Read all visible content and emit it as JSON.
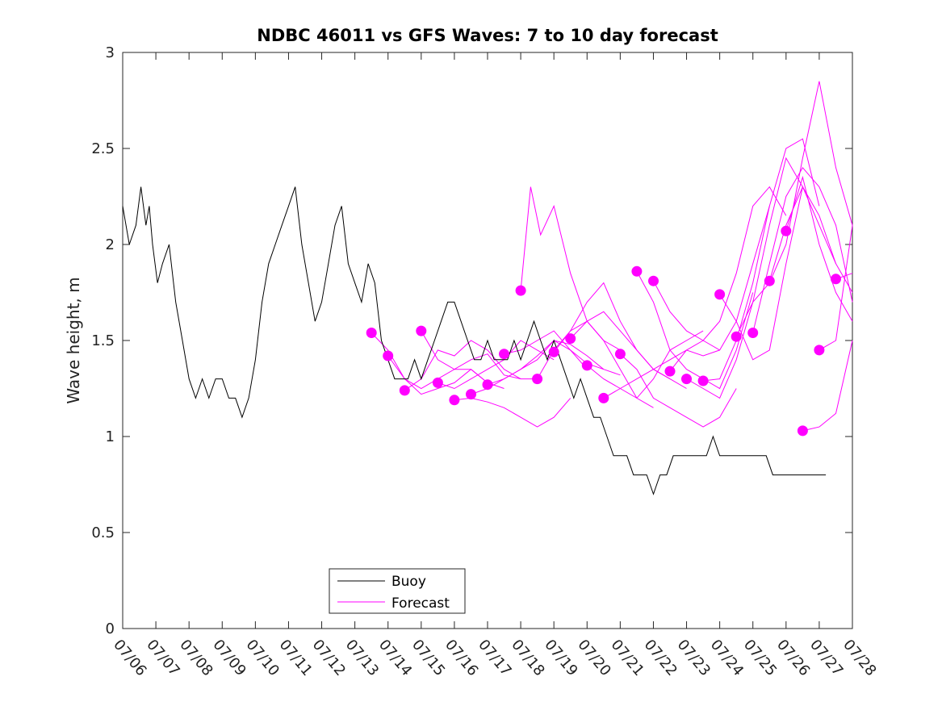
{
  "chart_data": {
    "type": "line",
    "title": "NDBC 46011 vs GFS Waves: 7 to 10 day forecast",
    "xlabel": "",
    "ylabel": "Wave height, m",
    "ylim": [
      0,
      3
    ],
    "yticks": [
      "0",
      "0.5",
      "1",
      "1.5",
      "2",
      "2.5",
      "3"
    ],
    "xlim": [
      "07/06",
      "07/28"
    ],
    "xticks": [
      "07/06",
      "07/07",
      "07/08",
      "07/09",
      "07/10",
      "07/11",
      "07/12",
      "07/13",
      "07/14",
      "07/15",
      "07/16",
      "07/17",
      "07/18",
      "07/19",
      "07/20",
      "07/21",
      "07/22",
      "07/23",
      "07/24",
      "07/25",
      "07/26",
      "07/27",
      "07/28"
    ],
    "legend": {
      "position": "bottom-left",
      "entries": [
        "Buoy",
        "Forecast"
      ]
    },
    "colors": {
      "buoy": "#000000",
      "forecast": "#ff00ff",
      "axes": "#262626"
    },
    "series": [
      {
        "name": "Buoy",
        "style": "line",
        "x": [
          0.0,
          0.2,
          0.4,
          0.55,
          0.7,
          0.8,
          0.9,
          1.05,
          1.2,
          1.4,
          1.6,
          1.8,
          2.0,
          2.2,
          2.4,
          2.6,
          2.8,
          3.0,
          3.2,
          3.4,
          3.6,
          3.8,
          4.0,
          4.2,
          4.4,
          4.6,
          4.8,
          5.0,
          5.2,
          5.4,
          5.6,
          5.8,
          6.0,
          6.2,
          6.4,
          6.6,
          6.8,
          7.0,
          7.2,
          7.4,
          7.6,
          7.8,
          8.0,
          8.2,
          8.4,
          8.6,
          8.8,
          9.0,
          9.2,
          9.4,
          9.6,
          9.8,
          10.0,
          10.2,
          10.4,
          10.6,
          10.8,
          11.0,
          11.2,
          11.4,
          11.6,
          11.8,
          12.0,
          12.2,
          12.4,
          12.6,
          12.8,
          13.0,
          13.2,
          13.4,
          13.6,
          13.8,
          14.0,
          14.2,
          14.4,
          14.6,
          14.8,
          15.0,
          15.2,
          15.4,
          15.6,
          15.8,
          16.0,
          16.2,
          16.4,
          16.6,
          16.8,
          17.0,
          17.2,
          17.4,
          17.6,
          17.8,
          18.0,
          18.2,
          18.4,
          18.6,
          18.8,
          19.0,
          19.2,
          19.4,
          19.6,
          19.8,
          20.0,
          20.2,
          20.4,
          20.6,
          20.8,
          21.0,
          21.2
        ],
        "y": [
          2.2,
          2.0,
          2.1,
          2.3,
          2.1,
          2.2,
          2.0,
          1.8,
          1.9,
          2.0,
          1.7,
          1.5,
          1.3,
          1.2,
          1.3,
          1.2,
          1.3,
          1.3,
          1.2,
          1.2,
          1.1,
          1.2,
          1.4,
          1.7,
          1.9,
          2.0,
          2.1,
          2.2,
          2.3,
          2.0,
          1.8,
          1.6,
          1.7,
          1.9,
          2.1,
          2.2,
          1.9,
          1.8,
          1.7,
          1.9,
          1.8,
          1.5,
          1.4,
          1.3,
          1.3,
          1.3,
          1.4,
          1.3,
          1.4,
          1.5,
          1.6,
          1.7,
          1.7,
          1.6,
          1.5,
          1.4,
          1.4,
          1.5,
          1.4,
          1.4,
          1.4,
          1.5,
          1.4,
          1.5,
          1.6,
          1.5,
          1.4,
          1.5,
          1.4,
          1.3,
          1.2,
          1.3,
          1.2,
          1.1,
          1.1,
          1.0,
          0.9,
          0.9,
          0.9,
          0.8,
          0.8,
          0.8,
          0.7,
          0.8,
          0.8,
          0.9,
          0.9,
          0.9,
          0.9,
          0.9,
          0.9,
          1.0,
          0.9,
          0.9,
          0.9,
          0.9,
          0.9,
          0.9,
          0.9,
          0.9,
          0.8,
          0.8,
          0.8,
          0.8,
          0.8,
          0.8,
          0.8,
          0.8,
          0.8
        ]
      },
      {
        "name": "Forecast",
        "style": "lines",
        "runs": [
          {
            "x": [
              7.5,
              8.0,
              8.5,
              9.0,
              9.5,
              10.0,
              10.5,
              11.0
            ],
            "y": [
              1.54,
              1.45,
              1.3,
              1.25,
              1.3,
              1.35,
              1.35,
              1.28
            ]
          },
          {
            "x": [
              8.0,
              8.5,
              9.0,
              9.5,
              10.0,
              10.5,
              11.0,
              11.5
            ],
            "y": [
              1.42,
              1.3,
              1.22,
              1.25,
              1.28,
              1.35,
              1.28,
              1.25
            ]
          },
          {
            "x": [
              8.5,
              9.0,
              9.5,
              10.0,
              10.5,
              11.0,
              11.5,
              12.0
            ],
            "y": [
              1.24,
              1.3,
              1.45,
              1.42,
              1.5,
              1.45,
              1.35,
              1.3
            ]
          },
          {
            "x": [
              9.0,
              9.5,
              10.0,
              10.5,
              11.0,
              11.5,
              12.0,
              12.5
            ],
            "y": [
              1.55,
              1.4,
              1.35,
              1.4,
              1.43,
              1.32,
              1.3,
              1.3
            ]
          },
          {
            "x": [
              9.5,
              10.0,
              10.5,
              11.0,
              11.5,
              12.0,
              12.5,
              13.0
            ],
            "y": [
              1.28,
              1.25,
              1.3,
              1.35,
              1.4,
              1.5,
              1.45,
              1.4
            ]
          },
          {
            "x": [
              10.0,
              10.5,
              11.0,
              11.5,
              12.0,
              12.5,
              13.0,
              13.5
            ],
            "y": [
              1.19,
              1.2,
              1.18,
              1.15,
              1.1,
              1.05,
              1.1,
              1.2
            ]
          },
          {
            "x": [
              10.5,
              11.0,
              11.5,
              12.0,
              12.5,
              13.0,
              13.5,
              14.0
            ],
            "y": [
              1.22,
              1.25,
              1.3,
              1.35,
              1.4,
              1.5,
              1.45,
              1.35
            ]
          },
          {
            "x": [
              11.0,
              11.5,
              12.0,
              12.5,
              13.0,
              13.5,
              14.0,
              14.5
            ],
            "y": [
              1.27,
              1.3,
              1.35,
              1.42,
              1.5,
              1.48,
              1.42,
              1.35
            ]
          },
          {
            "x": [
              11.5,
              12.0,
              12.5,
              13.0,
              13.5,
              14.0,
              14.5,
              15.0
            ],
            "y": [
              1.43,
              1.45,
              1.5,
              1.55,
              1.45,
              1.38,
              1.35,
              1.32
            ]
          },
          {
            "x": [
              12.0,
              12.3,
              12.6,
              13.0,
              13.5,
              14.0,
              14.5,
              15.0
            ],
            "y": [
              1.76,
              2.3,
              2.05,
              2.2,
              1.85,
              1.6,
              1.5,
              1.45
            ]
          },
          {
            "x": [
              12.5,
              13.0,
              13.5,
              14.0,
              14.5,
              15.0,
              15.5,
              16.0
            ],
            "y": [
              1.3,
              1.45,
              1.55,
              1.6,
              1.5,
              1.35,
              1.2,
              1.15
            ]
          },
          {
            "x": [
              13.0,
              13.5,
              14.0,
              14.5,
              15.0,
              15.5,
              16.0,
              16.5
            ],
            "y": [
              1.44,
              1.55,
              1.7,
              1.8,
              1.6,
              1.45,
              1.35,
              1.3
            ]
          },
          {
            "x": [
              13.5,
              14.0,
              14.5,
              15.0,
              15.5,
              16.0,
              16.5,
              17.0
            ],
            "y": [
              1.51,
              1.6,
              1.65,
              1.55,
              1.45,
              1.35,
              1.3,
              1.25
            ]
          },
          {
            "x": [
              14.0,
              14.5,
              15.0,
              15.5,
              16.0,
              16.5,
              17.0,
              17.5
            ],
            "y": [
              1.37,
              1.3,
              1.25,
              1.2,
              1.3,
              1.45,
              1.5,
              1.55
            ]
          },
          {
            "x": [
              14.5,
              15.0,
              15.5,
              16.0,
              16.5,
              17.0,
              17.5,
              18.0
            ],
            "y": [
              1.2,
              1.25,
              1.3,
              1.35,
              1.4,
              1.45,
              1.42,
              1.45
            ]
          },
          {
            "x": [
              15.0,
              15.5,
              16.0,
              16.5,
              17.0,
              17.5,
              18.0,
              18.5
            ],
            "y": [
              1.43,
              1.35,
              1.2,
              1.15,
              1.1,
              1.05,
              1.1,
              1.25
            ]
          },
          {
            "x": [
              15.5,
              16.0,
              16.5,
              17.0,
              17.5,
              18.0,
              18.5,
              19.0
            ],
            "y": [
              1.86,
              1.7,
              1.45,
              1.35,
              1.3,
              1.25,
              1.45,
              1.75
            ]
          },
          {
            "x": [
              16.0,
              16.5,
              17.0,
              17.5,
              18.0,
              18.5,
              19.0,
              19.5
            ],
            "y": [
              1.81,
              1.65,
              1.55,
              1.5,
              1.45,
              1.6,
              1.9,
              2.2
            ]
          },
          {
            "x": [
              16.5,
              17.0,
              17.5,
              18.0,
              18.5,
              19.0,
              19.5,
              20.0
            ],
            "y": [
              1.34,
              1.45,
              1.5,
              1.6,
              1.85,
              2.2,
              2.3,
              2.15
            ]
          },
          {
            "x": [
              17.0,
              17.5,
              18.0,
              18.5,
              19.0,
              19.5,
              20.0,
              20.5
            ],
            "y": [
              1.3,
              1.25,
              1.2,
              1.4,
              1.7,
              2.1,
              2.45,
              2.3
            ]
          },
          {
            "x": [
              17.5,
              18.0,
              18.5,
              19.0,
              19.5,
              20.0,
              20.5,
              21.0
            ],
            "y": [
              1.29,
              1.3,
              1.5,
              1.8,
              2.2,
              2.5,
              2.55,
              2.2
            ]
          },
          {
            "x": [
              18.0,
              18.5,
              19.0,
              19.5,
              20.0,
              20.5,
              21.0,
              21.5
            ],
            "y": [
              1.74,
              1.6,
              1.4,
              1.45,
              1.9,
              2.3,
              2.15,
              1.9
            ]
          },
          {
            "x": [
              18.5,
              19.0,
              19.5,
              20.0,
              20.5,
              21.0,
              21.5,
              22.0
            ],
            "y": [
              1.52,
              1.7,
              1.8,
              2.0,
              2.45,
              2.85,
              2.4,
              2.1
            ]
          },
          {
            "x": [
              19.0,
              19.5,
              20.0,
              20.5,
              21.0,
              21.5,
              22.0
            ],
            "y": [
              1.54,
              1.9,
              2.25,
              2.4,
              2.3,
              2.1,
              1.7
            ]
          },
          {
            "x": [
              19.5,
              20.0,
              20.5,
              21.0,
              21.5,
              22.0
            ],
            "y": [
              1.81,
              2.1,
              2.3,
              2.1,
              1.9,
              1.75
            ]
          },
          {
            "x": [
              20.0,
              20.5,
              21.0,
              21.5,
              22.0
            ],
            "y": [
              2.07,
              2.35,
              2.0,
              1.75,
              1.6
            ]
          },
          {
            "x": [
              20.5,
              21.0,
              21.5,
              22.0
            ],
            "y": [
              1.03,
              1.05,
              1.12,
              1.5
            ]
          },
          {
            "x": [
              21.0,
              21.5,
              22.0
            ],
            "y": [
              1.45,
              1.5,
              2.1
            ]
          },
          {
            "x": [
              21.5,
              22.0
            ],
            "y": [
              1.82,
              1.85
            ]
          }
        ]
      },
      {
        "name": "",
        "style": "markers",
        "x": [
          7.5,
          8.0,
          8.5,
          9.0,
          9.5,
          10.0,
          10.5,
          11.0,
          11.5,
          12.0,
          12.5,
          13.0,
          13.5,
          14.0,
          14.5,
          15.0,
          15.5,
          16.0,
          16.5,
          17.0,
          17.5,
          18.0,
          18.5,
          19.0,
          19.5,
          20.0,
          20.5,
          21.0,
          21.5
        ],
        "y": [
          1.54,
          1.42,
          1.24,
          1.55,
          1.28,
          1.19,
          1.22,
          1.27,
          1.43,
          1.76,
          1.3,
          1.44,
          1.51,
          1.37,
          1.2,
          1.43,
          1.86,
          1.81,
          1.34,
          1.3,
          1.29,
          1.74,
          1.52,
          1.54,
          1.81,
          2.07,
          1.03,
          1.45,
          1.82
        ]
      }
    ]
  }
}
